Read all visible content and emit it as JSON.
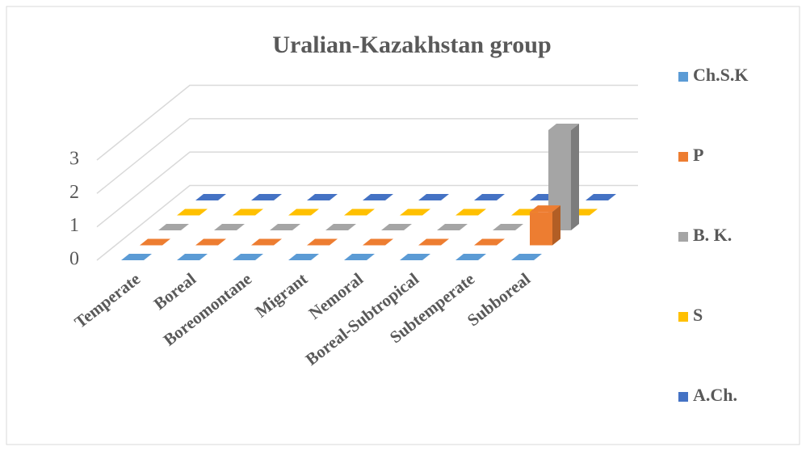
{
  "chart_data": {
    "type": "bar3d",
    "title": "Uralian-Kazakhstan   group",
    "categories": [
      "Temperate",
      "Boreal",
      "Boreomontane",
      "Migrant",
      "Nemoral",
      "Boreal-Subtropical",
      "Subtemperate",
      "Subboreal"
    ],
    "series": [
      {
        "name": "Ch.S.K",
        "color": "#5b9bd5",
        "values": [
          0,
          0,
          0,
          0,
          0,
          0,
          0,
          0
        ]
      },
      {
        "name": "P",
        "color": "#ed7d31",
        "values": [
          0,
          0,
          0,
          0,
          0,
          0,
          0,
          1
        ]
      },
      {
        "name": "B. K.",
        "color": "#a5a5a5",
        "values": [
          0,
          0,
          0,
          0,
          0,
          0,
          0,
          3
        ]
      },
      {
        "name": "S",
        "color": "#ffc000",
        "values": [
          0,
          0,
          0,
          0,
          0,
          0,
          0,
          0
        ]
      },
      {
        "name": "A.Ch.",
        "color": "#4472c4",
        "values": [
          0,
          0,
          0,
          0,
          0,
          0,
          0,
          0
        ]
      }
    ],
    "ylim": [
      0,
      3
    ],
    "yticks": [
      0,
      1,
      2,
      3
    ],
    "grid": true,
    "legend": "right"
  }
}
